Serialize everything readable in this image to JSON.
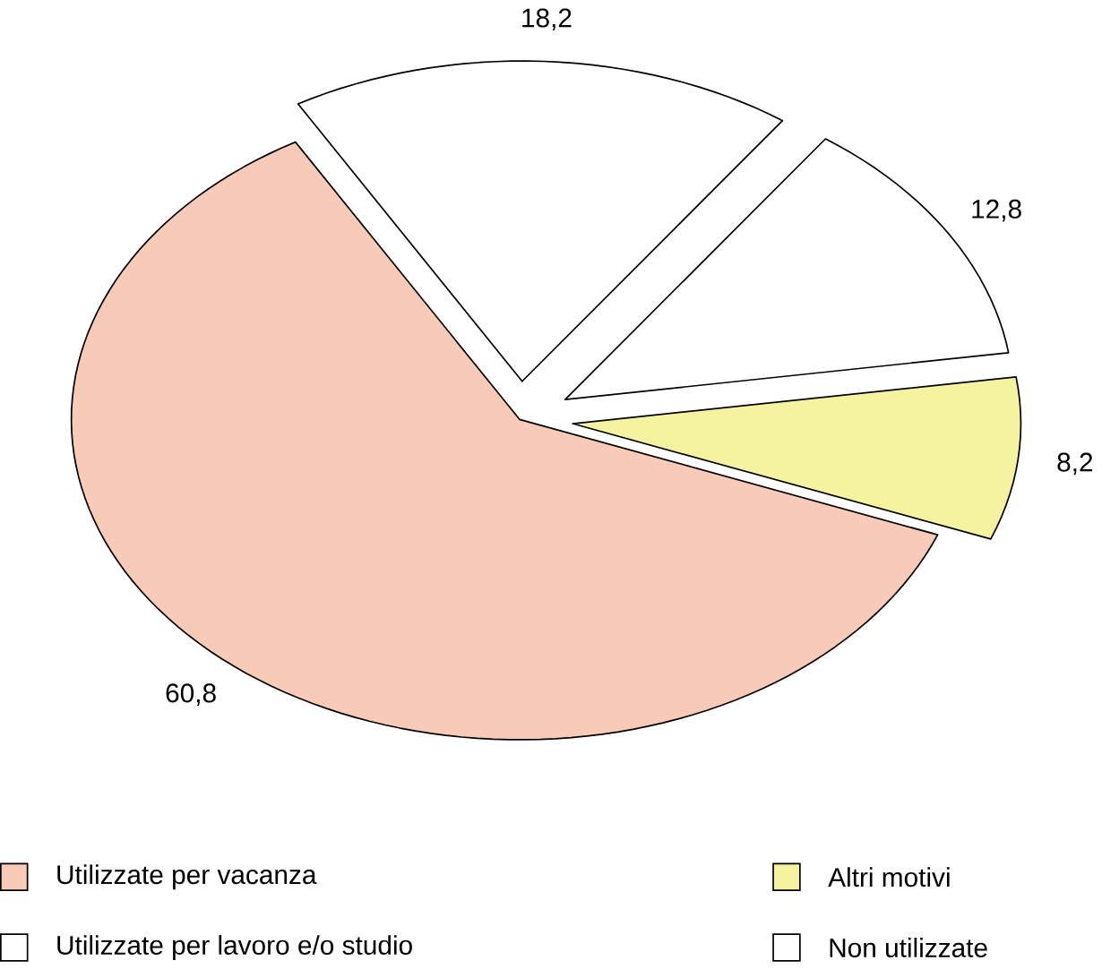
{
  "chart_data": {
    "type": "pie",
    "categories": [
      "Utilizzate per lavoro e/o studio",
      "Non utilizzate",
      "Altri motivi",
      "Utilizzate per vacanza"
    ],
    "values": [
      18.2,
      12.8,
      8.2,
      60.8
    ],
    "colors": [
      "#ffffff",
      "#ffffff",
      "#f5f3a0",
      "#f7cbb8"
    ],
    "value_labels": [
      "18,2",
      "12,8",
      "8,2",
      "60,8"
    ],
    "legend": "bottom"
  }
}
